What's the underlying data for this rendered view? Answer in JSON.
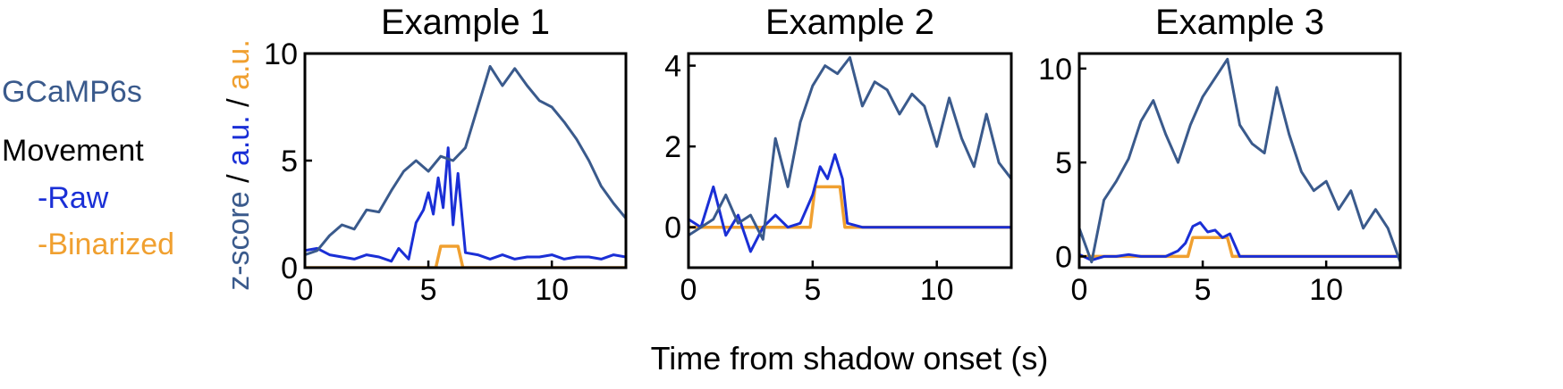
{
  "figure": {
    "xlabel": "Time from shadow onset (s)",
    "ylabel_parts": [
      {
        "text": "z-score",
        "color": "#3a5a8c"
      },
      {
        "text": " / ",
        "color": "#000000"
      },
      {
        "text": "a.u.",
        "color": "#1a2fd6"
      },
      {
        "text": " / ",
        "color": "#000000"
      },
      {
        "text": "a.u.",
        "color": "#f0a030"
      }
    ]
  },
  "legend": {
    "gcamp": "GCaMP6s",
    "movement": "Movement",
    "raw": "-Raw",
    "binarized": "-Binarized"
  },
  "colors": {
    "gcamp": "#3a5a8c",
    "raw": "#1a2fd6",
    "binarized": "#f0a030",
    "axis": "#000000"
  },
  "chart_data": [
    {
      "type": "line",
      "title": "Example 1",
      "xlim": [
        0,
        13
      ],
      "ylim": [
        0,
        10
      ],
      "xticks": [
        0,
        5,
        10
      ],
      "yticks": [
        0,
        5,
        10
      ],
      "series": [
        {
          "name": "GCaMP6s",
          "x": [
            0,
            0.5,
            1,
            1.5,
            2,
            2.5,
            3,
            3.5,
            4,
            4.5,
            5,
            5.5,
            6,
            6.5,
            7,
            7.5,
            8,
            8.5,
            9,
            9.5,
            10,
            10.5,
            11,
            11.5,
            12,
            12.5,
            13
          ],
          "y": [
            0.6,
            0.8,
            1.5,
            2.0,
            1.8,
            2.7,
            2.6,
            3.6,
            4.5,
            5.0,
            4.5,
            5.2,
            5.0,
            5.6,
            7.5,
            9.4,
            8.5,
            9.3,
            8.5,
            7.8,
            7.5,
            6.8,
            6.0,
            5.0,
            3.8,
            3.0,
            2.3
          ]
        },
        {
          "name": "Raw",
          "x": [
            0,
            0.5,
            1,
            1.5,
            2,
            2.5,
            3,
            3.5,
            3.8,
            4.2,
            4.5,
            4.8,
            5,
            5.2,
            5.4,
            5.6,
            5.8,
            6.0,
            6.2,
            6.5,
            7,
            7.5,
            8,
            8.5,
            9,
            9.5,
            10,
            10.5,
            11,
            11.5,
            12,
            12.5,
            13
          ],
          "y": [
            0.8,
            0.9,
            0.6,
            0.5,
            0.4,
            0.6,
            0.5,
            0.3,
            0.9,
            0.4,
            2.1,
            2.7,
            3.5,
            2.5,
            4.2,
            2.8,
            5.6,
            2.0,
            4.4,
            0.7,
            0.6,
            0.4,
            0.6,
            0.4,
            0.5,
            0.5,
            0.6,
            0.4,
            0.5,
            0.5,
            0.4,
            0.6,
            0.5
          ]
        },
        {
          "name": "Binarized",
          "x": [
            0,
            5.3,
            5.5,
            6.2,
            6.4,
            13
          ],
          "y": [
            0,
            0,
            1,
            1,
            0,
            0
          ]
        }
      ]
    },
    {
      "type": "line",
      "title": "Example 2",
      "xlim": [
        0,
        13
      ],
      "ylim": [
        -1,
        4.3
      ],
      "xticks": [
        0,
        5,
        10
      ],
      "yticks": [
        0,
        2,
        4
      ],
      "series": [
        {
          "name": "GCaMP6s",
          "x": [
            0,
            0.5,
            1,
            1.5,
            2,
            2.5,
            3,
            3.5,
            4,
            4.5,
            5,
            5.5,
            6,
            6.5,
            7,
            7.5,
            8,
            8.5,
            9,
            9.5,
            10,
            10.5,
            11,
            11.5,
            12,
            12.5,
            13
          ],
          "y": [
            -0.2,
            0.0,
            0.2,
            0.8,
            0.1,
            0.3,
            -0.3,
            2.2,
            1.0,
            2.6,
            3.5,
            4.0,
            3.8,
            4.2,
            3.0,
            3.6,
            3.4,
            2.8,
            3.3,
            3.0,
            2.0,
            3.2,
            2.2,
            1.5,
            2.8,
            1.6,
            1.2
          ]
        },
        {
          "name": "Raw",
          "x": [
            0,
            0.5,
            1,
            1.5,
            2,
            2.5,
            3,
            3.5,
            4,
            4.5,
            5,
            5.3,
            5.6,
            5.9,
            6.2,
            6.4,
            7,
            7.5,
            8,
            8.5,
            9,
            9.5,
            10,
            10.5,
            11,
            11.5,
            12,
            12.5,
            13
          ],
          "y": [
            0.2,
            0.0,
            1.0,
            -0.2,
            0.3,
            -0.6,
            0.0,
            0.3,
            0.0,
            0.1,
            0.8,
            1.5,
            1.2,
            1.8,
            1.2,
            0.1,
            0.0,
            0.0,
            0.0,
            0.0,
            0.0,
            0.0,
            0.0,
            0.0,
            0.0,
            0.0,
            0.0,
            0.0,
            0.0
          ]
        },
        {
          "name": "Binarized",
          "x": [
            0,
            4.9,
            5.1,
            6.1,
            6.3,
            13
          ],
          "y": [
            0,
            0,
            1,
            1,
            0,
            0
          ]
        }
      ]
    },
    {
      "type": "line",
      "title": "Example 3",
      "xlim": [
        0,
        13
      ],
      "ylim": [
        -0.6,
        10.8
      ],
      "xticks": [
        0,
        5,
        10
      ],
      "yticks": [
        0,
        5,
        10
      ],
      "series": [
        {
          "name": "GCaMP6s",
          "x": [
            0,
            0.5,
            1,
            1.5,
            2,
            2.5,
            3,
            3.5,
            4,
            4.5,
            5,
            5.5,
            6,
            6.5,
            7,
            7.5,
            8,
            8.5,
            9,
            9.5,
            10,
            10.5,
            11,
            11.5,
            12,
            12.5,
            13
          ],
          "y": [
            1.5,
            -0.3,
            3.0,
            4.0,
            5.2,
            7.2,
            8.3,
            6.5,
            5.0,
            7.0,
            8.5,
            9.5,
            10.5,
            7.0,
            6.0,
            5.5,
            9.0,
            6.5,
            4.5,
            3.5,
            4.0,
            2.5,
            3.5,
            1.5,
            2.5,
            1.5,
            -0.3
          ]
        },
        {
          "name": "Raw",
          "x": [
            0,
            0.5,
            1,
            1.5,
            2,
            2.5,
            3,
            3.5,
            4,
            4.3,
            4.6,
            4.9,
            5.2,
            5.5,
            5.8,
            6.1,
            6.5,
            7,
            7.5,
            8,
            8.5,
            9,
            9.5,
            10,
            10.5,
            11,
            11.5,
            12,
            12.5,
            13
          ],
          "y": [
            0.1,
            -0.2,
            0.0,
            0.0,
            0.1,
            0.0,
            0.0,
            0.0,
            0.3,
            0.7,
            1.6,
            1.8,
            1.3,
            1.4,
            1.0,
            1.2,
            0.0,
            0.0,
            0.0,
            0.0,
            0.0,
            0.0,
            0.0,
            0.0,
            0.0,
            0.0,
            0.0,
            0.0,
            0.0,
            0.0
          ]
        },
        {
          "name": "Binarized",
          "x": [
            0,
            4.4,
            4.6,
            6.0,
            6.2,
            13
          ],
          "y": [
            0,
            0,
            1,
            1,
            0,
            0
          ]
        }
      ]
    }
  ]
}
